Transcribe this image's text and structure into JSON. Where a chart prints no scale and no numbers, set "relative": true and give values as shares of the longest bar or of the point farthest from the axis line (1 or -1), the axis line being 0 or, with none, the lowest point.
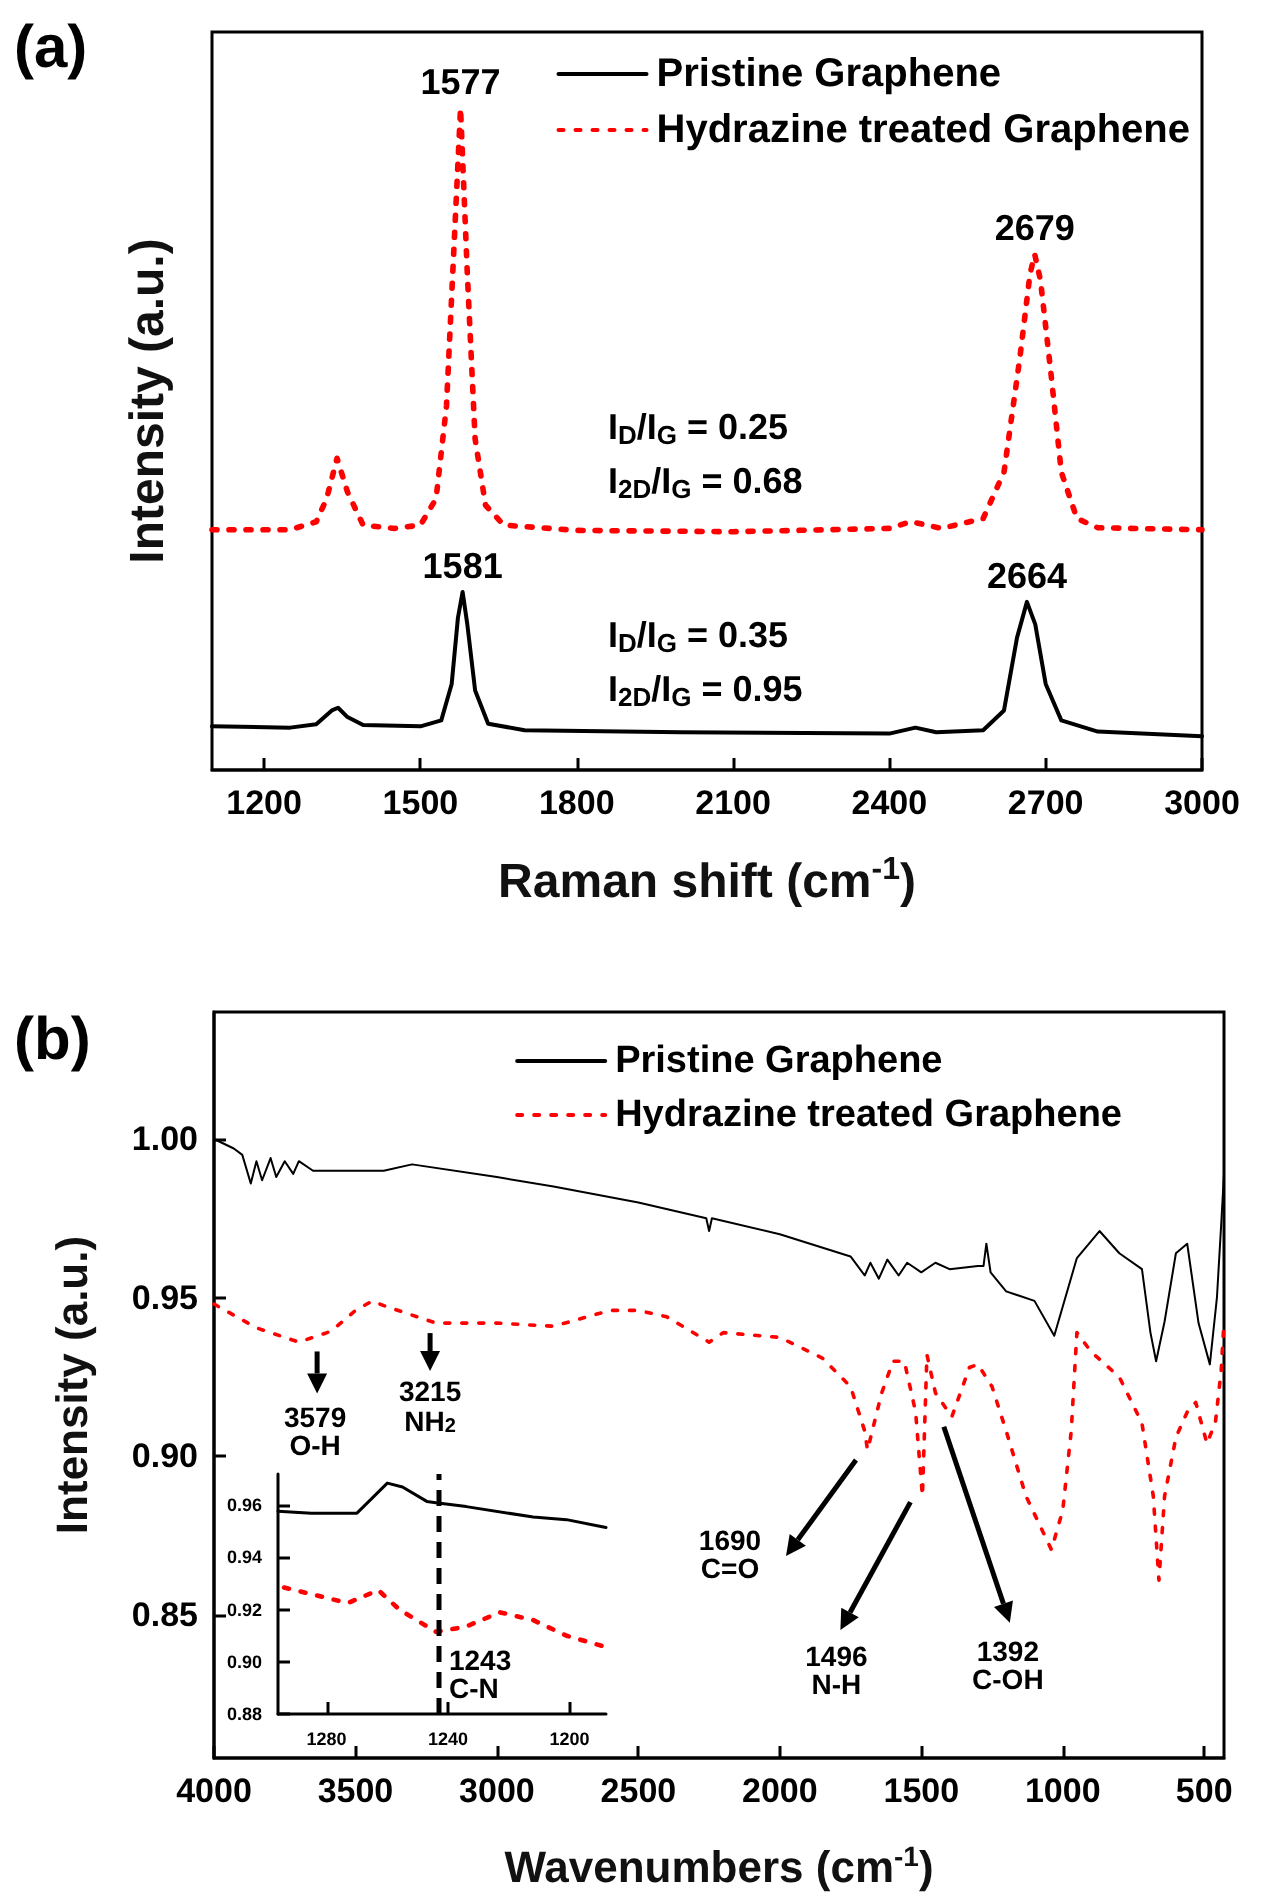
{
  "chart_data": [
    {
      "type": "line",
      "title": "(a)",
      "xlabel": "Raman shift (cm$^{-1}$)",
      "ylabel": "Intensity (a.u.)",
      "relative": true,
      "xlim": [
        1100,
        3000
      ],
      "xticks": [
        1200,
        1500,
        1800,
        2100,
        2400,
        2700,
        3000
      ],
      "legend": "top right",
      "series": [
        {
          "name": "Pristine Graphene",
          "color": "#000000",
          "line_style": "solid",
          "x": [
            1100,
            1250,
            1300,
            1330,
            1342,
            1360,
            1390,
            1500,
            1540,
            1560,
            1572,
            1581,
            1590,
            1605,
            1630,
            1700,
            2000,
            2400,
            2450,
            2490,
            2580,
            2620,
            2645,
            2664,
            2680,
            2700,
            2730,
            2800,
            3000
          ],
          "values": [
            0.066,
            0.064,
            0.069,
            0.09,
            0.094,
            0.08,
            0.068,
            0.066,
            0.075,
            0.13,
            0.23,
            0.269,
            0.22,
            0.12,
            0.07,
            0.06,
            0.057,
            0.055,
            0.064,
            0.057,
            0.06,
            0.09,
            0.2,
            0.254,
            0.22,
            0.13,
            0.075,
            0.058,
            0.051
          ]
        },
        {
          "name": "Hydrazine treated Graphene",
          "color": "#ff0000",
          "line_style": "dotted",
          "x": [
            1100,
            1250,
            1300,
            1320,
            1340,
            1360,
            1390,
            1450,
            1500,
            1530,
            1550,
            1565,
            1577,
            1590,
            1605,
            1625,
            1660,
            1800,
            2100,
            2400,
            2440,
            2460,
            2500,
            2580,
            2620,
            2650,
            2670,
            2679,
            2690,
            2710,
            2730,
            2760,
            2800,
            3000
          ],
          "values": [
            0.363,
            0.363,
            0.375,
            0.41,
            0.471,
            0.42,
            0.37,
            0.365,
            0.37,
            0.41,
            0.55,
            0.8,
            1,
            0.75,
            0.5,
            0.4,
            0.37,
            0.362,
            0.36,
            0.365,
            0.375,
            0.372,
            0.365,
            0.38,
            0.45,
            0.62,
            0.75,
            0.779,
            0.74,
            0.6,
            0.45,
            0.38,
            0.366,
            0.363
          ]
        }
      ],
      "annotations": [
        {
          "text": "1577",
          "x": 1577,
          "y": 1
        },
        {
          "text": "2679",
          "x": 2679,
          "y": 0.779
        },
        {
          "text": "1581",
          "x": 1581,
          "y": 0.269
        },
        {
          "text": "2664",
          "x": 2664,
          "y": 0.254
        },
        "I$_{D}$/I$_{G}$ = 0.25\nI$_{2D}$/I$_{G}$ = 0.68",
        "I$_{D}$/I$_{G}$ = 0.35\nI$_{2D}$/I$_{G}$ = 0.95"
      ]
    },
    {
      "type": "line",
      "title": "(b)",
      "xlabel": "Wavenumbers (cm$^{-1}$)",
      "ylabel": "Intensity (a.u.)",
      "xlim": [
        4000,
        430
      ],
      "xticks": [
        4000,
        3500,
        3000,
        2500,
        2000,
        1500,
        1000,
        500
      ],
      "ylim": [
        0.805,
        1.04
      ],
      "yticks": [
        {
          "value": 0.85,
          "label": "0.85"
        },
        {
          "value": 0.9,
          "label": "0.90"
        },
        {
          "value": 0.95,
          "label": "0.95"
        },
        {
          "value": 1,
          "label": "1.00"
        }
      ],
      "legend": "top right",
      "series": [
        {
          "name": "Pristine Graphene",
          "color": "#000000",
          "line_style": "solid",
          "x": [
            4000,
            3930,
            3900,
            3870,
            3850,
            3830,
            3800,
            3780,
            3750,
            3720,
            3700,
            3650,
            3600,
            3400,
            3300,
            3000,
            2800,
            2500,
            2260,
            2250,
            2240,
            2000,
            1750,
            1700,
            1680,
            1650,
            1620,
            1580,
            1550,
            1500,
            1450,
            1400,
            1300,
            1280,
            1270,
            1255,
            1200,
            1100,
            1030,
            950,
            870,
            800,
            720,
            690,
            670,
            640,
            600,
            560,
            520,
            480,
            455,
            440,
            430
          ],
          "values": [
            1,
            0.997,
            0.995,
            0.986,
            0.993,
            0.987,
            0.994,
            0.988,
            0.993,
            0.989,
            0.993,
            0.99,
            0.99,
            0.99,
            0.992,
            0.988,
            0.985,
            0.98,
            0.975,
            0.971,
            0.975,
            0.97,
            0.963,
            0.957,
            0.961,
            0.956,
            0.962,
            0.957,
            0.961,
            0.958,
            0.961,
            0.959,
            0.96,
            0.96,
            0.967,
            0.958,
            0.952,
            0.949,
            0.938,
            0.9625,
            0.971,
            0.964,
            0.959,
            0.939,
            0.93,
            0.9425,
            0.964,
            0.967,
            0.942,
            0.929,
            0.95,
            0.973,
            0.989
          ]
        },
        {
          "name": "Hydrazine treated Graphene",
          "color": "#ff0000",
          "line_style": "dotted",
          "x": [
            4000,
            3850,
            3700,
            3600,
            3579,
            3500,
            3440,
            3400,
            3215,
            3000,
            2800,
            2600,
            2500,
            2400,
            2250,
            2200,
            2000,
            1850,
            1750,
            1700,
            1690,
            1640,
            1600,
            1560,
            1520,
            1496,
            1480,
            1450,
            1392,
            1330,
            1300,
            1250,
            1200,
            1130,
            1040,
            1000,
            970,
            950,
            900,
            800,
            720,
            680,
            660,
            640,
            600,
            560,
            530,
            490,
            460,
            440,
            430
          ],
          "values": [
            0.948,
            0.9405,
            0.936,
            0.939,
            0.94,
            0.946,
            0.949,
            0.9475,
            0.942,
            0.942,
            0.941,
            0.946,
            0.946,
            0.944,
            0.936,
            0.939,
            0.9375,
            0.931,
            0.922,
            0.908,
            0.902,
            0.92,
            0.93,
            0.93,
            0.914,
            0.8875,
            0.932,
            0.92,
            0.9125,
            0.928,
            0.929,
            0.922,
            0.908,
            0.8875,
            0.8706,
            0.883,
            0.908,
            0.939,
            0.933,
            0.925,
            0.9105,
            0.8875,
            0.861,
            0.8875,
            0.906,
            0.914,
            0.917,
            0.904,
            0.911,
            0.927,
            0.9425
          ]
        }
      ],
      "annotations": [
        {
          "text": "3579\nO-H",
          "x": 3579,
          "y": 0.94
        },
        {
          "text": "3215\nNH$_{2}$",
          "x": 3215,
          "y": 0.942
        },
        "1690\nC=O",
        {
          "text": "1496\nN-H",
          "x": 1496,
          "y": 0.8875
        },
        {
          "text": "1392\nC-OH",
          "x": 1392,
          "y": 0.9125
        }
      ]
    },
    {
      "type": "line",
      "xlim": [
        1296,
        1188
      ],
      "xticks": [
        1280,
        1240,
        1200
      ],
      "ylim": [
        0.88,
        0.972
      ],
      "yticks": [
        0.88,
        {
          "value": 0.9,
          "label": "0.90"
        },
        0.92,
        0.94,
        0.96
      ],
      "series": [
        {
          "color": "#000000",
          "line_style": "solid",
          "x": [
            1296,
            1285,
            1270,
            1260,
            1255,
            1247,
            1244,
            1234,
            1212,
            1201,
            1188
          ],
          "values": [
            0.9577,
            0.957,
            0.957,
            0.9685,
            0.967,
            0.9615,
            0.961,
            0.9595,
            0.9555,
            0.9545,
            0.9515
          ]
        },
        {
          "color": "#ff0000",
          "line_style": "dotted",
          "x": [
            1294,
            1273,
            1263,
            1256,
            1244,
            1234,
            1223,
            1212,
            1201,
            1189
          ],
          "values": [
            0.9285,
            0.9225,
            0.9275,
            0.92,
            0.9115,
            0.9135,
            0.919,
            0.916,
            0.91,
            0.906
          ]
        }
      ],
      "ref_lines": [
        {
          "axis": "x",
          "value": 1243,
          "line_style": "dashed",
          "color": "#000000"
        }
      ],
      "annotations": [
        {
          "text": "1243\nC-N",
          "x": 1243,
          "y": 0.9
        }
      ]
    }
  ]
}
